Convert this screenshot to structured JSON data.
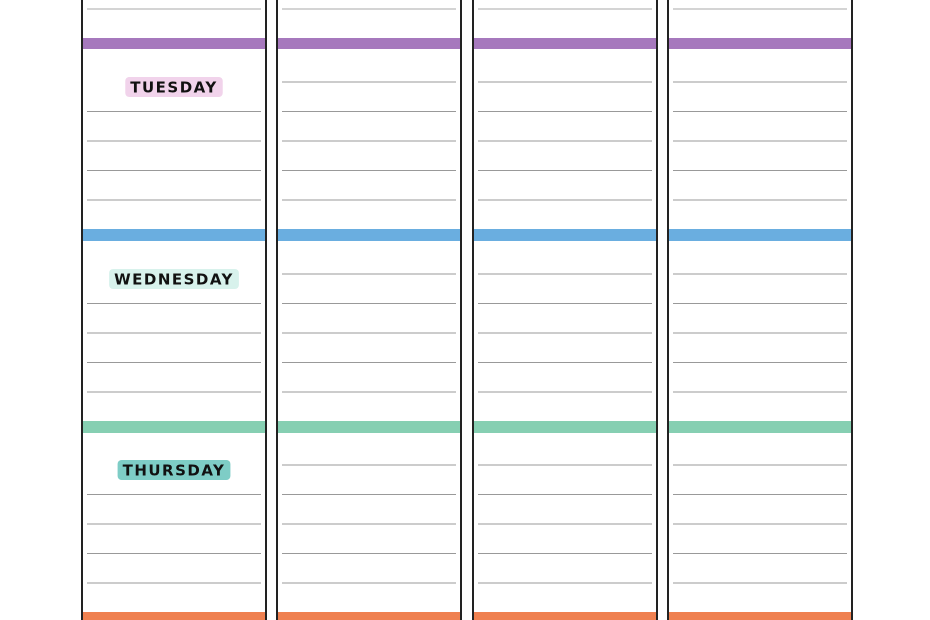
{
  "days": [
    {
      "label": "TUESDAY",
      "color": "#a678bd",
      "tag": "#f1d3eb"
    },
    {
      "label": "WEDNESDAY",
      "color": "#6aaee0",
      "tag": "#d8f2ec"
    },
    {
      "label": "THURSDAY",
      "color": "#86cfb2",
      "tag": "#7ecdc6"
    }
  ],
  "bottom_color": "#ef8050"
}
